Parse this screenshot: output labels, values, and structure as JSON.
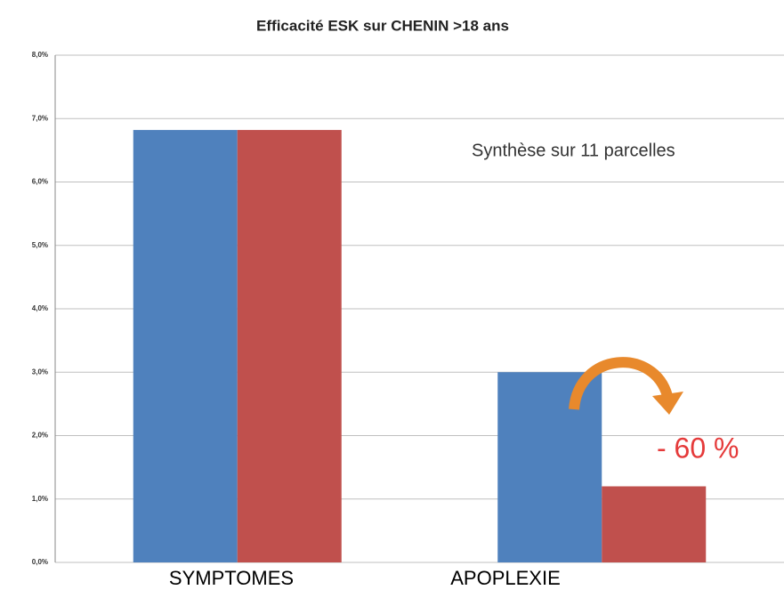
{
  "chart_data": {
    "type": "bar",
    "title": "Efficacité ESK sur CHENIN  >18 ans",
    "annotations": [
      "Synthèse sur 11 parcelles",
      "- 60 %"
    ],
    "categories": [
      "SYMPTOMES",
      "APOPLEXIE"
    ],
    "series": [
      {
        "color": "#4f81bd",
        "values": [
          6.82,
          3.0
        ]
      },
      {
        "color": "#c0504d",
        "values": [
          6.82,
          1.2
        ]
      }
    ],
    "ylim": [
      0,
      8
    ],
    "yticks": [
      {
        "value": 0,
        "label": "0,0%"
      },
      {
        "value": 1,
        "label": "1,0%"
      },
      {
        "value": 2,
        "label": "2,0%"
      },
      {
        "value": 3,
        "label": "3,0%"
      },
      {
        "value": 4,
        "label": "4,0%"
      },
      {
        "value": 5,
        "label": "5,0%"
      },
      {
        "value": 6,
        "label": "6,0%"
      },
      {
        "value": 7,
        "label": "7,0%"
      },
      {
        "value": 8,
        "label": "8,0%"
      }
    ],
    "grid": true
  }
}
